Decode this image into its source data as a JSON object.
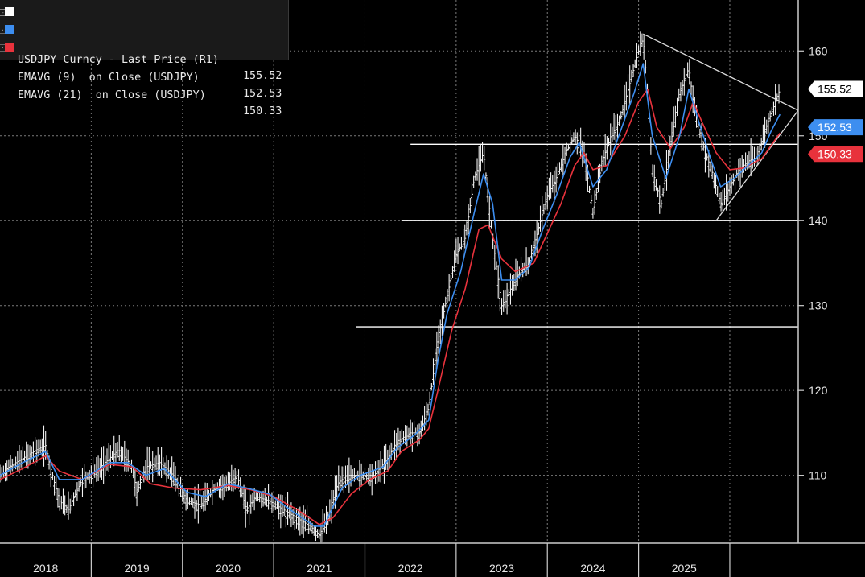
{
  "chart_data": {
    "type": "line",
    "title": "",
    "xlabel": "",
    "ylabel": "",
    "ylim": [
      102,
      166
    ],
    "xlim": [
      2017.5,
      2026.25
    ],
    "x_ticks": [
      "2018",
      "2019",
      "2020",
      "2021",
      "2022",
      "2023",
      "2024",
      "2025"
    ],
    "y_ticks": [
      110,
      120,
      130,
      140,
      150,
      160
    ],
    "y_axis_side": "right",
    "grid": true,
    "legend_position": "top-left",
    "series": [
      {
        "name": "USDJPY Curncy - Last Price (R1)",
        "last_value": "155.52",
        "color": "#ffffff",
        "style": "price-bars",
        "points": [
          [
            2017.5,
            110
          ],
          [
            2017.6,
            111
          ],
          [
            2017.75,
            112
          ],
          [
            2017.9,
            113
          ],
          [
            2018.0,
            113.5
          ],
          [
            2018.05,
            111
          ],
          [
            2018.15,
            107
          ],
          [
            2018.25,
            106
          ],
          [
            2018.4,
            109.5
          ],
          [
            2018.55,
            110.5
          ],
          [
            2018.7,
            112
          ],
          [
            2018.8,
            113
          ],
          [
            2018.95,
            111
          ],
          [
            2019.0,
            108
          ],
          [
            2019.1,
            111
          ],
          [
            2019.25,
            111.5
          ],
          [
            2019.4,
            110
          ],
          [
            2019.55,
            107
          ],
          [
            2019.7,
            106.5
          ],
          [
            2019.85,
            108.5
          ],
          [
            2020.0,
            109
          ],
          [
            2020.1,
            110
          ],
          [
            2020.2,
            106
          ],
          [
            2020.3,
            107.5
          ],
          [
            2020.45,
            107
          ],
          [
            2020.6,
            106
          ],
          [
            2020.75,
            105
          ],
          [
            2020.9,
            104
          ],
          [
            2021.0,
            103
          ],
          [
            2021.1,
            105
          ],
          [
            2021.2,
            109
          ],
          [
            2021.3,
            110
          ],
          [
            2021.45,
            110
          ],
          [
            2021.6,
            110
          ],
          [
            2021.75,
            112
          ],
          [
            2021.85,
            114
          ],
          [
            2022.0,
            115
          ],
          [
            2022.1,
            115
          ],
          [
            2022.2,
            118
          ],
          [
            2022.3,
            126
          ],
          [
            2022.4,
            131
          ],
          [
            2022.5,
            136
          ],
          [
            2022.6,
            138
          ],
          [
            2022.7,
            145
          ],
          [
            2022.8,
            148
          ],
          [
            2022.9,
            138
          ],
          [
            2023.0,
            130
          ],
          [
            2023.1,
            132
          ],
          [
            2023.2,
            134
          ],
          [
            2023.3,
            135
          ],
          [
            2023.4,
            139
          ],
          [
            2023.5,
            143
          ],
          [
            2023.6,
            145
          ],
          [
            2023.7,
            148
          ],
          [
            2023.8,
            150
          ],
          [
            2023.9,
            148
          ],
          [
            2024.0,
            141
          ],
          [
            2024.1,
            147
          ],
          [
            2024.2,
            150
          ],
          [
            2024.3,
            152
          ],
          [
            2024.4,
            156
          ],
          [
            2024.5,
            160
          ],
          [
            2024.55,
            161.5
          ],
          [
            2024.6,
            155
          ],
          [
            2024.65,
            146
          ],
          [
            2024.75,
            142
          ],
          [
            2024.85,
            149
          ],
          [
            2024.95,
            155
          ],
          [
            2025.05,
            158
          ],
          [
            2025.1,
            154
          ],
          [
            2025.2,
            149
          ],
          [
            2025.3,
            146
          ],
          [
            2025.4,
            142
          ],
          [
            2025.5,
            144
          ],
          [
            2025.6,
            146
          ],
          [
            2025.7,
            147
          ],
          [
            2025.8,
            147.5
          ],
          [
            2025.9,
            151
          ],
          [
            2026.0,
            154
          ],
          [
            2026.05,
            155.52
          ]
        ]
      },
      {
        "name": "EMAVG (9)  on Close (USDJPY)",
        "last_value": "152.53",
        "color": "#3d8ef0",
        "style": "line",
        "points": [
          [
            2017.5,
            110
          ],
          [
            2017.75,
            111.5
          ],
          [
            2018.0,
            112.8
          ],
          [
            2018.15,
            109.5
          ],
          [
            2018.4,
            109.5
          ],
          [
            2018.7,
            111.5
          ],
          [
            2018.9,
            111.5
          ],
          [
            2019.1,
            110
          ],
          [
            2019.3,
            110.8
          ],
          [
            2019.55,
            108
          ],
          [
            2019.75,
            107.5
          ],
          [
            2020.0,
            109
          ],
          [
            2020.2,
            108.5
          ],
          [
            2020.45,
            107.8
          ],
          [
            2020.7,
            105.8
          ],
          [
            2020.95,
            104
          ],
          [
            2021.05,
            104
          ],
          [
            2021.25,
            108.5
          ],
          [
            2021.45,
            110
          ],
          [
            2021.7,
            111
          ],
          [
            2021.85,
            113.2
          ],
          [
            2022.05,
            114.8
          ],
          [
            2022.2,
            116.5
          ],
          [
            2022.3,
            123.5
          ],
          [
            2022.4,
            129
          ],
          [
            2022.55,
            134
          ],
          [
            2022.7,
            141
          ],
          [
            2022.8,
            145.5
          ],
          [
            2022.9,
            142
          ],
          [
            2023.0,
            133
          ],
          [
            2023.15,
            133
          ],
          [
            2023.3,
            134.5
          ],
          [
            2023.45,
            139
          ],
          [
            2023.6,
            143
          ],
          [
            2023.75,
            147.5
          ],
          [
            2023.85,
            149.2
          ],
          [
            2024.0,
            144
          ],
          [
            2024.15,
            146
          ],
          [
            2024.3,
            150.5
          ],
          [
            2024.45,
            155
          ],
          [
            2024.55,
            158.5
          ],
          [
            2024.65,
            150
          ],
          [
            2024.8,
            145
          ],
          [
            2024.95,
            150
          ],
          [
            2025.05,
            155.5
          ],
          [
            2025.15,
            152
          ],
          [
            2025.3,
            147
          ],
          [
            2025.4,
            144
          ],
          [
            2025.55,
            145
          ],
          [
            2025.7,
            146.5
          ],
          [
            2025.85,
            148
          ],
          [
            2025.95,
            150.5
          ],
          [
            2026.05,
            152.53
          ]
        ]
      },
      {
        "name": "EMAVG (21)  on Close (USDJPY)",
        "last_value": "150.33",
        "color": "#e8323c",
        "style": "line",
        "points": [
          [
            2017.5,
            109.5
          ],
          [
            2017.75,
            110.8
          ],
          [
            2018.0,
            112.3
          ],
          [
            2018.15,
            110.5
          ],
          [
            2018.4,
            109.5
          ],
          [
            2018.7,
            111.3
          ],
          [
            2018.95,
            111
          ],
          [
            2019.15,
            109
          ],
          [
            2019.4,
            108.5
          ],
          [
            2019.7,
            108.3
          ],
          [
            2020.0,
            108.8
          ],
          [
            2020.25,
            108.3
          ],
          [
            2020.5,
            107.5
          ],
          [
            2020.75,
            106
          ],
          [
            2021.0,
            104.2
          ],
          [
            2021.15,
            105
          ],
          [
            2021.35,
            107.8
          ],
          [
            2021.55,
            109.5
          ],
          [
            2021.75,
            110.5
          ],
          [
            2021.9,
            112.8
          ],
          [
            2022.1,
            114.2
          ],
          [
            2022.2,
            115.5
          ],
          [
            2022.3,
            120
          ],
          [
            2022.45,
            127
          ],
          [
            2022.6,
            132
          ],
          [
            2022.75,
            139
          ],
          [
            2022.85,
            139.5
          ],
          [
            2023.0,
            135.5
          ],
          [
            2023.15,
            134
          ],
          [
            2023.35,
            135
          ],
          [
            2023.5,
            138.5
          ],
          [
            2023.65,
            142
          ],
          [
            2023.8,
            146.5
          ],
          [
            2023.9,
            148
          ],
          [
            2024.0,
            146
          ],
          [
            2024.15,
            146.5
          ],
          [
            2024.35,
            150
          ],
          [
            2024.5,
            154
          ],
          [
            2024.6,
            155.5
          ],
          [
            2024.7,
            151
          ],
          [
            2024.85,
            148.5
          ],
          [
            2025.0,
            151
          ],
          [
            2025.1,
            154
          ],
          [
            2025.2,
            151.5
          ],
          [
            2025.35,
            148
          ],
          [
            2025.5,
            146
          ],
          [
            2025.65,
            146.2
          ],
          [
            2025.85,
            147.3
          ],
          [
            2026.05,
            150.33
          ]
        ]
      }
    ],
    "annotations": [
      {
        "kind": "hline",
        "y": 149,
        "x_start": 2022.0,
        "x_end": 2026.25
      },
      {
        "kind": "hline",
        "y": 140,
        "x_start": 2021.9,
        "x_end": 2026.25
      },
      {
        "kind": "hline",
        "y": 127.5,
        "x_start": 2021.4,
        "x_end": 2026.25
      },
      {
        "kind": "trend-line",
        "from": [
          2024.55,
          162
        ],
        "to": [
          2026.25,
          153
        ]
      },
      {
        "kind": "trend-line",
        "from": [
          2025.35,
          140
        ],
        "to": [
          2026.25,
          153
        ]
      }
    ]
  }
}
